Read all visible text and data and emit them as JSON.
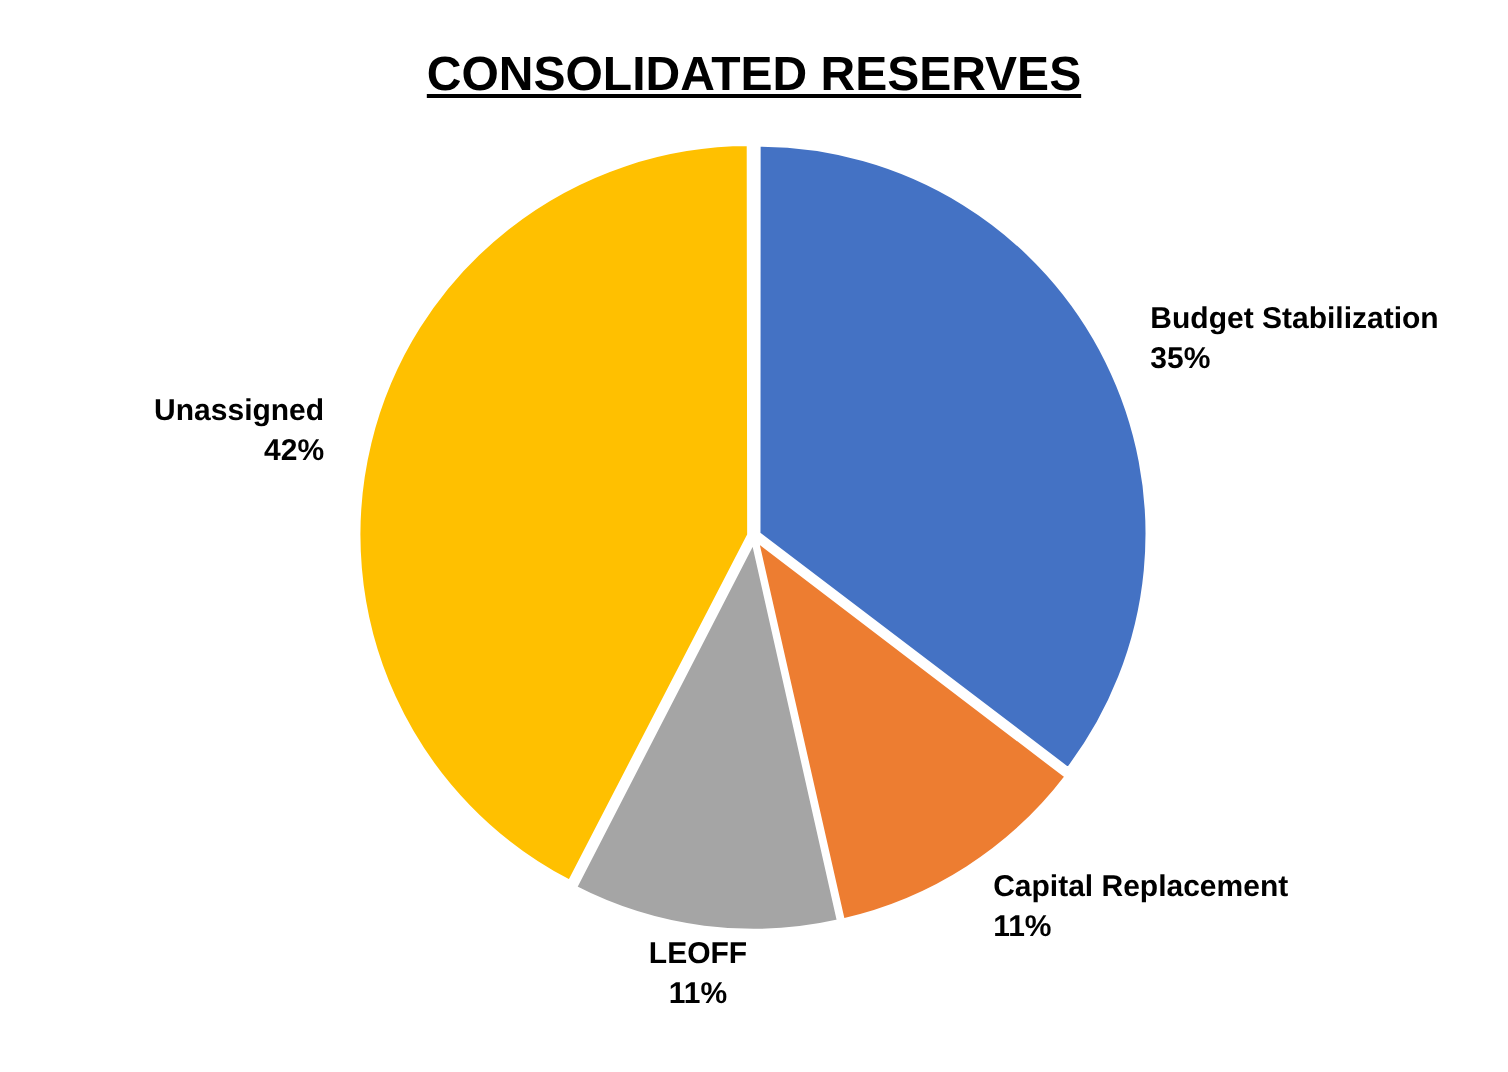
{
  "chart_data": {
    "type": "pie",
    "title": "CONSOLIDATED RESERVES",
    "categories": [
      "Budget Stabilization",
      "Capital Replacement",
      "LEOFF",
      "Unassigned"
    ],
    "values": [
      35,
      11,
      11,
      42
    ],
    "colors": [
      "#4472c4",
      "#ed7d31",
      "#a5a5a5",
      "#ffc000"
    ],
    "value_labels": [
      "35%",
      "11%",
      "11%",
      "42%"
    ],
    "legend": false
  }
}
